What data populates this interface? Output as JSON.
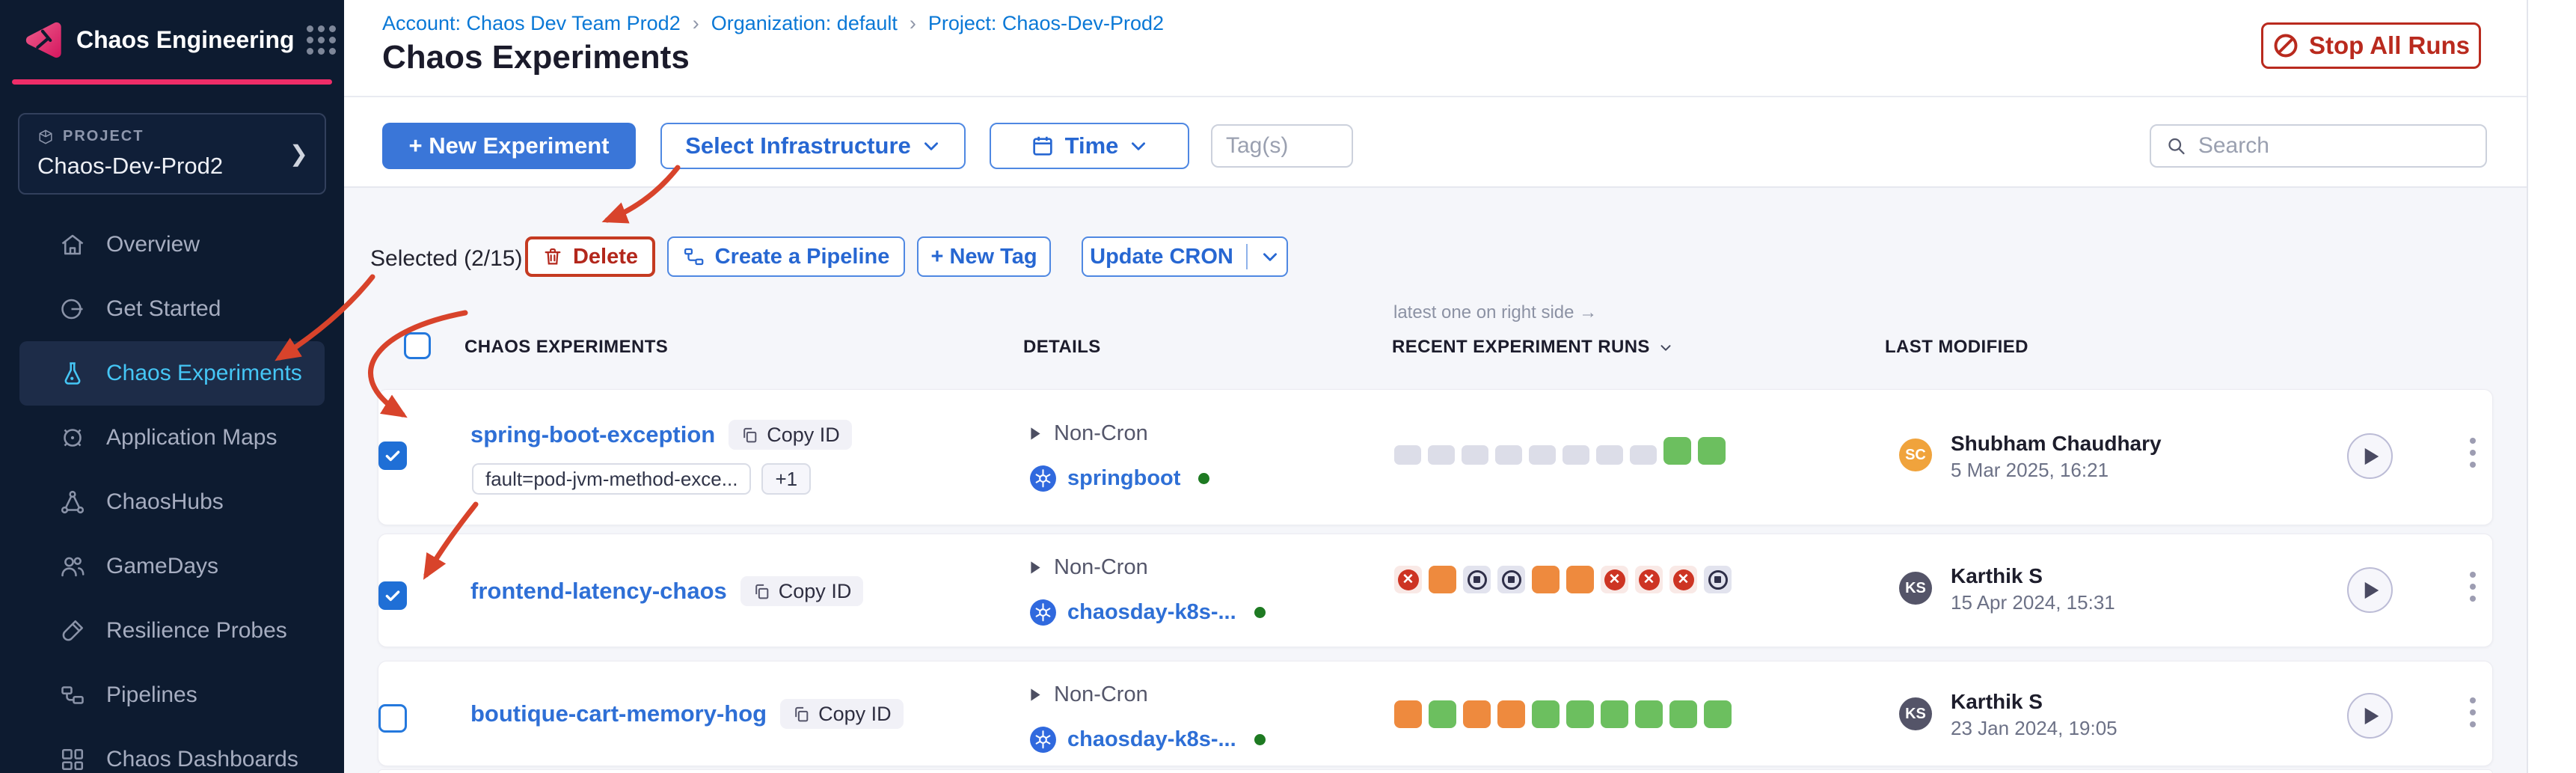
{
  "app": {
    "product": "Chaos Engineering"
  },
  "sidebar": {
    "project_label": "PROJECT",
    "project_name": "Chaos-Dev-Prod2",
    "items": [
      {
        "label": "Overview",
        "icon": "home-icon",
        "active": false
      },
      {
        "label": "Get Started",
        "icon": "get-started-icon",
        "active": false
      },
      {
        "label": "Chaos Experiments",
        "icon": "flask-icon",
        "active": true
      },
      {
        "label": "Application Maps",
        "icon": "target-icon",
        "active": false
      },
      {
        "label": "ChaosHubs",
        "icon": "nodes-icon",
        "active": false
      },
      {
        "label": "GameDays",
        "icon": "people-icon",
        "active": false
      },
      {
        "label": "Resilience Probes",
        "icon": "test-tube-icon",
        "active": false
      },
      {
        "label": "Pipelines",
        "icon": "pipeline-icon",
        "active": false
      },
      {
        "label": "Chaos Dashboards",
        "icon": "dashboard-icon",
        "active": false
      }
    ]
  },
  "header": {
    "breadcrumb": {
      "account": "Account: Chaos Dev Team Prod2",
      "org": "Organization: default",
      "project": "Project: Chaos-Dev-Prod2",
      "separator": "›"
    },
    "title": "Chaos Experiments",
    "stop_all_runs": "Stop All Runs"
  },
  "toolbar": {
    "new_experiment": "+ New Experiment",
    "select_infrastructure": "Select Infrastructure",
    "time": "Time",
    "tags_placeholder": "Tag(s)",
    "search_placeholder": "Search"
  },
  "bulkbar": {
    "selected": "Selected (2/15)",
    "delete": "Delete",
    "create_pipeline": "Create a Pipeline",
    "new_tag": "+ New Tag",
    "update_cron": "Update CRON"
  },
  "table": {
    "runs_hint": "latest one on right side →",
    "columns": [
      "CHAOS EXPERIMENTS",
      "DETAILS",
      "RECENT EXPERIMENT RUNS",
      "LAST MODIFIED"
    ],
    "rows": [
      {
        "name": "spring-boot-exception",
        "copy_id": "Copy ID",
        "checked": true,
        "tags": [
          "fault=pod-jvm-method-exce...",
          "+1"
        ],
        "cron": "Non-Cron",
        "infra": "springboot",
        "runs": [
          "empty",
          "empty",
          "empty",
          "empty",
          "empty",
          "empty",
          "empty",
          "empty",
          "completed",
          "completed"
        ],
        "modified_by": "Shubham Chaudhary",
        "modified_initials": "SC",
        "modified_date": "5 Mar 2025, 16:21",
        "avatar_color": "#f0a33c"
      },
      {
        "name": "frontend-latency-chaos",
        "copy_id": "Copy ID",
        "checked": true,
        "tags": [],
        "cron": "Non-Cron",
        "infra": "chaosday-k8s-...",
        "runs": [
          "failed",
          "amber",
          "stopped",
          "stopped",
          "amber",
          "amber",
          "failed",
          "failed",
          "failed",
          "stopped"
        ],
        "modified_by": "Karthik S",
        "modified_initials": "KS",
        "modified_date": "15 Apr 2024, 15:31",
        "avatar_color": "#545468"
      },
      {
        "name": "boutique-cart-memory-hog",
        "copy_id": "Copy ID",
        "checked": false,
        "tags": [],
        "cron": "Non-Cron",
        "infra": "chaosday-k8s-...",
        "runs": [
          "amber",
          "completed",
          "amber",
          "amber",
          "completed",
          "completed",
          "completed",
          "completed",
          "completed",
          "completed"
        ],
        "modified_by": "Karthik S",
        "modified_initials": "KS",
        "modified_date": "23 Jan 2024, 19:05",
        "avatar_color": "#545468"
      }
    ]
  },
  "colors": {
    "sidebar_bg": "#0d1b30",
    "brand_pink": "#ee2d68",
    "active_cyan": "#45c6f5",
    "primary_blue": "#3a76d8",
    "link_blue": "#2e6fd6",
    "danger_red": "#b92a1e",
    "run_completed": "#6cbf5f",
    "run_amber": "#ee8a3e",
    "run_failed": "#cd3423",
    "annotation_red": "#d8432b"
  }
}
